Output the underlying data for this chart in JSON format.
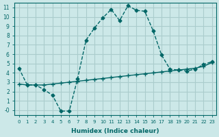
{
  "xlabel": "Humidex (Indice chaleur)",
  "ylabel": "",
  "bg_color": "#cce8e8",
  "grid_color": "#aacccc",
  "line_color": "#006666",
  "xlim": [
    -0.5,
    23.5
  ],
  "ylim": [
    -0.5,
    11.5
  ],
  "xticks": [
    0,
    1,
    2,
    3,
    4,
    5,
    6,
    7,
    8,
    9,
    10,
    11,
    12,
    13,
    14,
    15,
    16,
    17,
    18,
    19,
    20,
    21,
    22,
    23
  ],
  "yticks": [
    0,
    1,
    2,
    3,
    4,
    5,
    6,
    7,
    8,
    9,
    10,
    11
  ],
  "ytick_labels": [
    "-0",
    "1",
    "2",
    "3",
    "4",
    "5",
    "6",
    "7",
    "8",
    "9",
    "10",
    "11"
  ],
  "line1_x": [
    0,
    1,
    2,
    3,
    4,
    5,
    6,
    7,
    8,
    9,
    10,
    11,
    12,
    13,
    14,
    15,
    16,
    17,
    18,
    19,
    20,
    21,
    22,
    23
  ],
  "line1_y": [
    4.5,
    2.7,
    2.7,
    2.2,
    1.6,
    -0.1,
    -0.1,
    3.4,
    7.5,
    8.8,
    9.9,
    10.8,
    9.6,
    11.2,
    10.7,
    10.6,
    8.5,
    5.9,
    4.4,
    4.3,
    4.2,
    4.4,
    4.9,
    5.2
  ],
  "line2_x": [
    0,
    1,
    2,
    3,
    4,
    5,
    6,
    7,
    8,
    9,
    10,
    11,
    12,
    13,
    14,
    15,
    16,
    17,
    18,
    19,
    20,
    21,
    22,
    23
  ],
  "line2_y": [
    2.8,
    2.7,
    2.7,
    2.7,
    2.8,
    2.9,
    3.0,
    3.1,
    3.2,
    3.3,
    3.4,
    3.5,
    3.6,
    3.7,
    3.8,
    3.9,
    4.0,
    4.1,
    4.2,
    4.3,
    4.4,
    4.5,
    4.7,
    5.1
  ]
}
